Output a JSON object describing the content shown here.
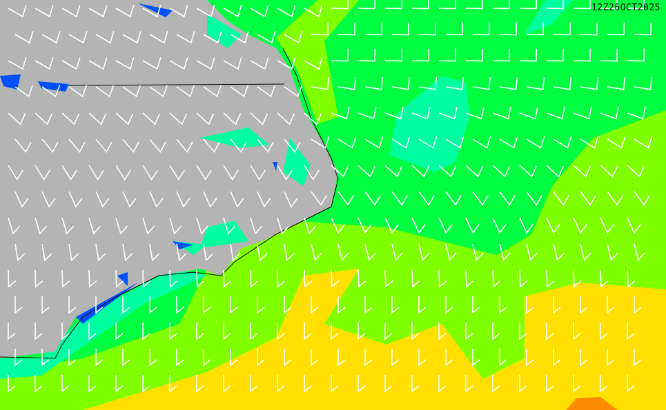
{
  "map": {
    "timestamp": "12Z26OCT2025",
    "colors": {
      "land": "#b4b4b4",
      "green": "#00ff40",
      "light_green": "#80ff00",
      "teal": "#00ffa0",
      "yellow": "#ffe000",
      "orange": "#ff8c00",
      "water_blue": "#0050ff",
      "barb": "#ffffff",
      "border": "#000000"
    }
  }
}
